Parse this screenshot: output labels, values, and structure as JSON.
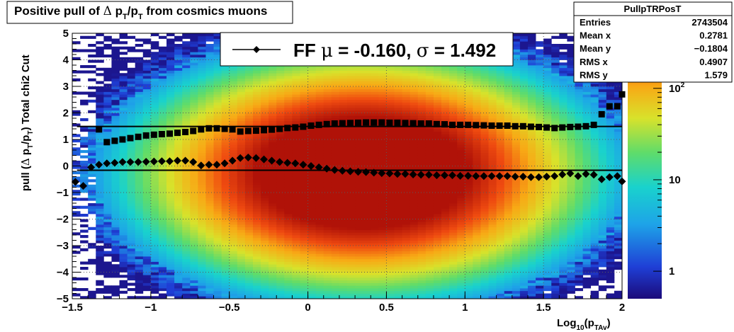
{
  "title_parts": {
    "prefix": "Positive pull of",
    "delta": "Δ",
    "p": "p",
    "sub_t": "T",
    "slash_p": "/p",
    "sub_t2": "T",
    "suffix": "from cosmics muons"
  },
  "ylabel_parts": {
    "a": "pull (",
    "delta": "Δ",
    "p": "p",
    "sub_t": "T",
    "slash_p": "/p",
    "sub_t2": "T",
    "b": ")",
    "c": "Total chi2 Cut"
  },
  "xlabel_parts": {
    "a": "Log",
    "sub10": "10",
    "b": "(p",
    "sub": "TAv",
    "c": ")"
  },
  "legend": {
    "prefix": "FF",
    "mu": "μ",
    "mu_text": " = -0.160,",
    "sigma": "σ",
    "sigma_text": " =",
    "sigma_value": "1.492"
  },
  "stats": {
    "title": "PullpTRPosT",
    "rows": [
      {
        "label": "Entries",
        "value": "2743504"
      },
      {
        "label": "Mean x",
        "value": "0.2781"
      },
      {
        "label": "Mean y",
        "value": "−0.1804"
      },
      {
        "label": "RMS x",
        "value": "0.4907"
      },
      {
        "label": "RMS y",
        "value": "1.579"
      }
    ]
  },
  "colors": {
    "frame": "#000000",
    "grid": "#5a5a5a",
    "markers": "#000000"
  },
  "chart_data": {
    "type": "heatmap",
    "xlim": [
      -1.5,
      2
    ],
    "ylim": [
      -5,
      5
    ],
    "grid": true,
    "z_scale": "log",
    "x_ticks": [
      {
        "v": -1.5,
        "label": "−1.5"
      },
      {
        "v": -1,
        "label": "−1"
      },
      {
        "v": -0.5,
        "label": "−0.5"
      },
      {
        "v": 0,
        "label": "0"
      },
      {
        "v": 0.5,
        "label": "0.5"
      },
      {
        "v": 1,
        "label": "1"
      },
      {
        "v": 1.5,
        "label": "1.5"
      },
      {
        "v": 2,
        "label": "2"
      }
    ],
    "y_ticks": [
      {
        "v": 5,
        "label": "5"
      },
      {
        "v": 4,
        "label": "4"
      },
      {
        "v": 3,
        "label": "3"
      },
      {
        "v": 2,
        "label": "2"
      },
      {
        "v": 1,
        "label": "1"
      },
      {
        "v": 0,
        "label": "0"
      },
      {
        "v": -1,
        "label": "−1"
      },
      {
        "v": -2,
        "label": "−2"
      },
      {
        "v": -3,
        "label": "−3"
      },
      {
        "v": -4,
        "label": "−4"
      },
      {
        "v": -5,
        "label": "−5"
      }
    ],
    "z_ticks": [
      {
        "v": 1,
        "label": "1"
      },
      {
        "v": 10,
        "label": "10"
      },
      {
        "v": 100,
        "label": "10",
        "sup": "2"
      }
    ],
    "z_range": [
      0.5,
      400
    ],
    "density": {
      "x_center": 0.35,
      "x_sigma": 0.5,
      "y_center": -0.25,
      "y_sigma": 1.55,
      "peak": 1000
    },
    "reference_lines": [
      {
        "y": 1.49,
        "x_range": [
          -1.47,
          2
        ]
      },
      {
        "y": -0.16,
        "x_range": [
          -1.47,
          2
        ]
      }
    ],
    "series": [
      {
        "marker": "square",
        "points": [
          [
            -1.33,
            1.38
          ],
          [
            -1.28,
            0.9
          ],
          [
            -1.23,
            0.95
          ],
          [
            -1.18,
            1.0
          ],
          [
            -1.13,
            1.05
          ],
          [
            -1.08,
            1.1
          ],
          [
            -1.03,
            1.15
          ],
          [
            -0.98,
            1.18
          ],
          [
            -0.93,
            1.2
          ],
          [
            -0.88,
            1.22
          ],
          [
            -0.83,
            1.25
          ],
          [
            -0.78,
            1.28
          ],
          [
            -0.73,
            1.32
          ],
          [
            -0.68,
            1.38
          ],
          [
            -0.63,
            1.42
          ],
          [
            -0.58,
            1.42
          ],
          [
            -0.53,
            1.4
          ],
          [
            -0.48,
            1.38
          ],
          [
            -0.43,
            1.3
          ],
          [
            -0.38,
            1.32
          ],
          [
            -0.33,
            1.33
          ],
          [
            -0.28,
            1.35
          ],
          [
            -0.23,
            1.37
          ],
          [
            -0.18,
            1.4
          ],
          [
            -0.13,
            1.43
          ],
          [
            -0.08,
            1.45
          ],
          [
            -0.03,
            1.48
          ],
          [
            0.02,
            1.52
          ],
          [
            0.07,
            1.55
          ],
          [
            0.12,
            1.58
          ],
          [
            0.17,
            1.6
          ],
          [
            0.22,
            1.61
          ],
          [
            0.27,
            1.62
          ],
          [
            0.32,
            1.63
          ],
          [
            0.37,
            1.64
          ],
          [
            0.42,
            1.64
          ],
          [
            0.47,
            1.64
          ],
          [
            0.52,
            1.63
          ],
          [
            0.57,
            1.63
          ],
          [
            0.62,
            1.62
          ],
          [
            0.67,
            1.61
          ],
          [
            0.72,
            1.6
          ],
          [
            0.77,
            1.6
          ],
          [
            0.82,
            1.58
          ],
          [
            0.87,
            1.57
          ],
          [
            0.92,
            1.55
          ],
          [
            0.97,
            1.55
          ],
          [
            1.02,
            1.55
          ],
          [
            1.07,
            1.54
          ],
          [
            1.12,
            1.53
          ],
          [
            1.17,
            1.52
          ],
          [
            1.22,
            1.52
          ],
          [
            1.27,
            1.52
          ],
          [
            1.32,
            1.5
          ],
          [
            1.37,
            1.5
          ],
          [
            1.42,
            1.48
          ],
          [
            1.47,
            1.47
          ],
          [
            1.52,
            1.45
          ],
          [
            1.57,
            1.43
          ],
          [
            1.62,
            1.45
          ],
          [
            1.67,
            1.47
          ],
          [
            1.72,
            1.48
          ],
          [
            1.77,
            1.5
          ],
          [
            1.82,
            1.55
          ],
          [
            1.87,
            1.95
          ],
          [
            1.92,
            2.25
          ],
          [
            1.97,
            2.25
          ],
          [
            2.0,
            2.7
          ]
        ]
      },
      {
        "marker": "diamond",
        "points": [
          [
            -1.48,
            -0.6
          ],
          [
            -1.43,
            -0.75
          ],
          [
            -1.38,
            -0.05
          ],
          [
            -1.33,
            0.05
          ],
          [
            -1.28,
            0.1
          ],
          [
            -1.23,
            0.12
          ],
          [
            -1.18,
            0.15
          ],
          [
            -1.13,
            0.15
          ],
          [
            -1.08,
            0.15
          ],
          [
            -1.03,
            0.16
          ],
          [
            -0.98,
            0.17
          ],
          [
            -0.93,
            0.18
          ],
          [
            -0.88,
            0.18
          ],
          [
            -0.83,
            0.2
          ],
          [
            -0.78,
            0.2
          ],
          [
            -0.73,
            0.15
          ],
          [
            -0.68,
            0.02
          ],
          [
            -0.63,
            0.05
          ],
          [
            -0.58,
            0.05
          ],
          [
            -0.53,
            0.1
          ],
          [
            -0.48,
            0.2
          ],
          [
            -0.43,
            0.3
          ],
          [
            -0.38,
            0.32
          ],
          [
            -0.33,
            0.3
          ],
          [
            -0.28,
            0.25
          ],
          [
            -0.23,
            0.2
          ],
          [
            -0.18,
            0.15
          ],
          [
            -0.13,
            0.12
          ],
          [
            -0.08,
            0.1
          ],
          [
            -0.03,
            0.05
          ],
          [
            0.02,
            0.0
          ],
          [
            0.07,
            -0.05
          ],
          [
            0.12,
            -0.1
          ],
          [
            0.17,
            -0.15
          ],
          [
            0.22,
            -0.18
          ],
          [
            0.27,
            -0.2
          ],
          [
            0.32,
            -0.22
          ],
          [
            0.37,
            -0.23
          ],
          [
            0.42,
            -0.25
          ],
          [
            0.47,
            -0.27
          ],
          [
            0.52,
            -0.28
          ],
          [
            0.57,
            -0.3
          ],
          [
            0.62,
            -0.3
          ],
          [
            0.67,
            -0.32
          ],
          [
            0.72,
            -0.33
          ],
          [
            0.77,
            -0.33
          ],
          [
            0.82,
            -0.35
          ],
          [
            0.87,
            -0.35
          ],
          [
            0.92,
            -0.35
          ],
          [
            0.97,
            -0.37
          ],
          [
            1.02,
            -0.37
          ],
          [
            1.07,
            -0.38
          ],
          [
            1.12,
            -0.38
          ],
          [
            1.17,
            -0.38
          ],
          [
            1.22,
            -0.38
          ],
          [
            1.27,
            -0.38
          ],
          [
            1.32,
            -0.4
          ],
          [
            1.37,
            -0.4
          ],
          [
            1.42,
            -0.42
          ],
          [
            1.47,
            -0.42
          ],
          [
            1.52,
            -0.4
          ],
          [
            1.57,
            -0.38
          ],
          [
            1.62,
            -0.32
          ],
          [
            1.67,
            -0.28
          ],
          [
            1.72,
            -0.38
          ],
          [
            1.77,
            -0.3
          ],
          [
            1.82,
            -0.33
          ],
          [
            1.87,
            -0.5
          ],
          [
            1.92,
            -0.42
          ],
          [
            1.97,
            -0.38
          ],
          [
            2.0,
            -0.58
          ]
        ]
      }
    ]
  }
}
